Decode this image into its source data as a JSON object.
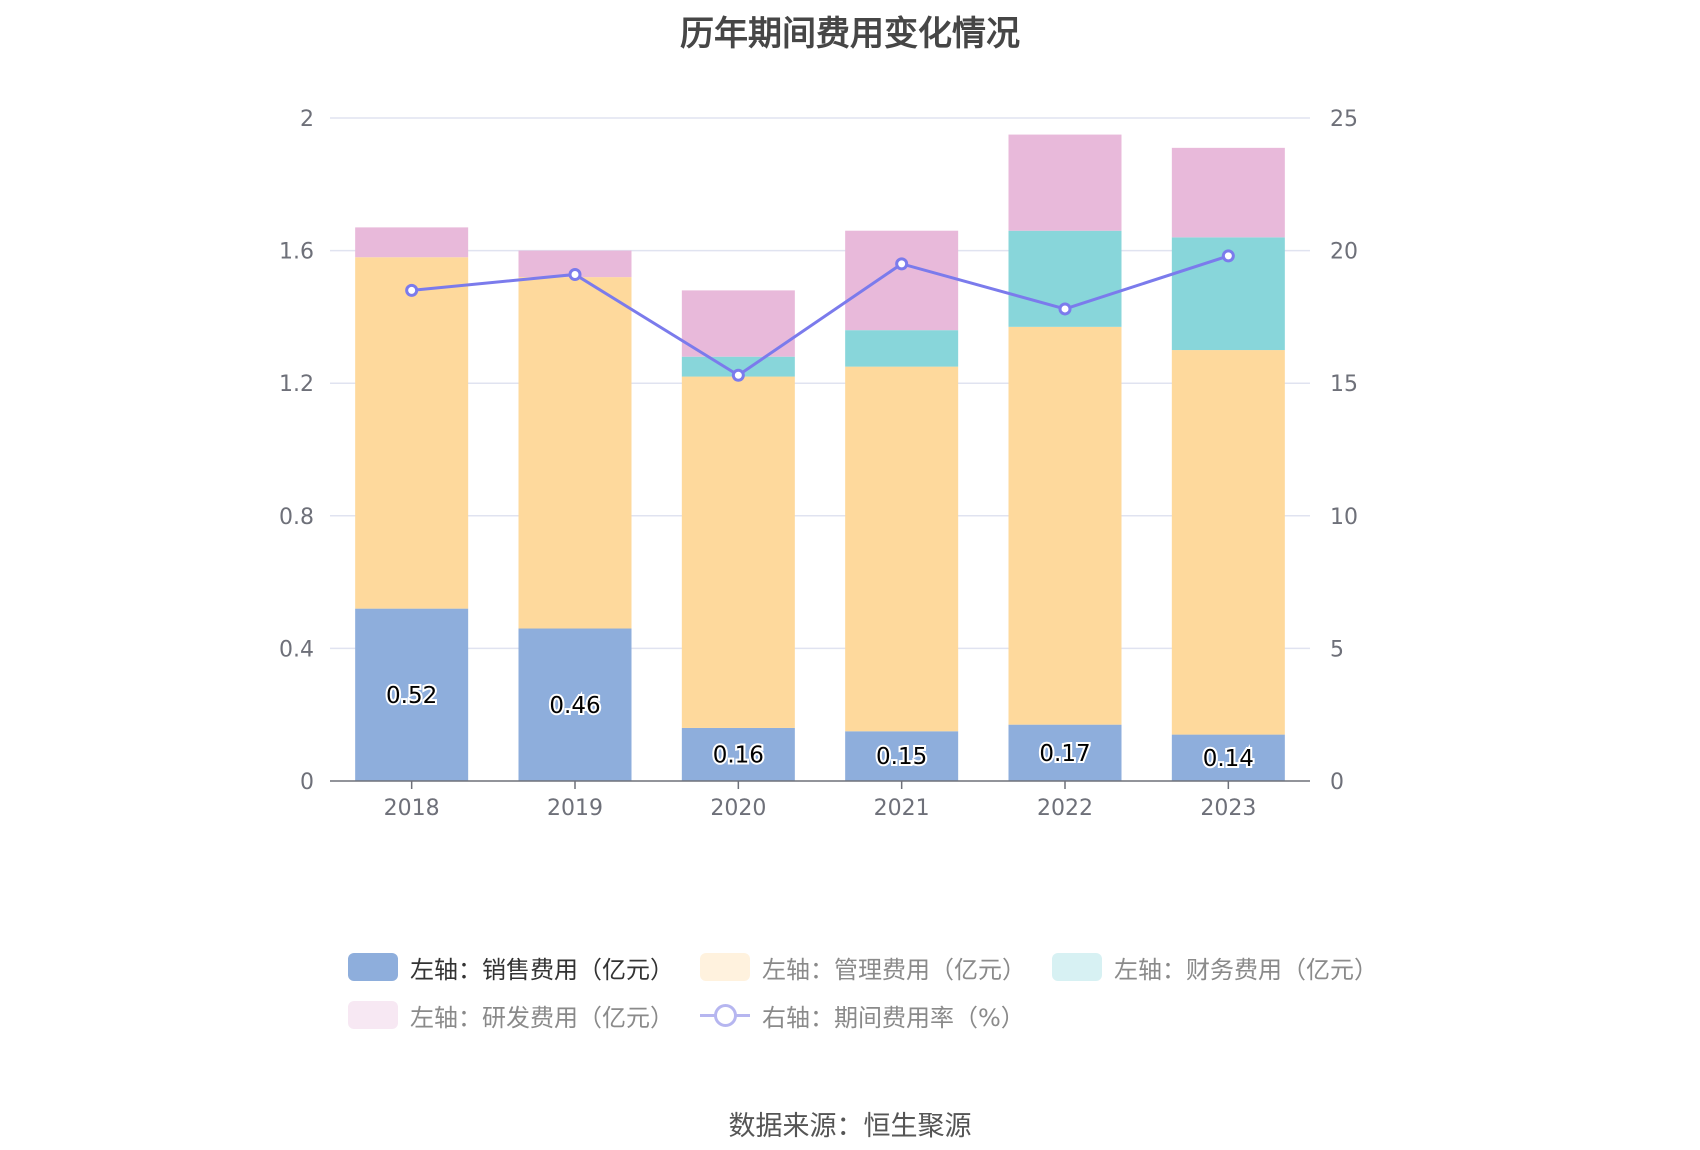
{
  "chart_data": {
    "type": "bar",
    "stacked": true,
    "title": "历年期间费用变化情况",
    "categories": [
      "2018",
      "2019",
      "2020",
      "2021",
      "2022",
      "2023"
    ],
    "series": [
      {
        "name": "左轴：销售费用（亿元）",
        "axis": "left",
        "color": "#8eaedc",
        "values": [
          0.52,
          0.46,
          0.16,
          0.15,
          0.17,
          0.14
        ],
        "labels": [
          "0.52",
          "0.46",
          "0.16",
          "0.15",
          "0.17",
          "0.14"
        ]
      },
      {
        "name": "左轴：管理费用（亿元）",
        "axis": "left",
        "color": "#fed99c",
        "values": [
          1.06,
          1.06,
          1.06,
          1.1,
          1.2,
          1.16
        ]
      },
      {
        "name": "左轴：财务费用（亿元）",
        "axis": "left",
        "color": "#88d6da",
        "values": [
          0.0,
          0.0,
          0.06,
          0.11,
          0.29,
          0.34
        ]
      },
      {
        "name": "左轴：研发费用（亿元）",
        "axis": "left",
        "color": "#e8b9da",
        "values": [
          0.09,
          0.08,
          0.2,
          0.3,
          0.29,
          0.27
        ]
      },
      {
        "name": "右轴：期间费用率（%）",
        "axis": "right",
        "type": "line",
        "color": "#7b7bec",
        "values": [
          18.5,
          19.1,
          15.3,
          19.5,
          17.8,
          19.8
        ]
      }
    ],
    "y_left": {
      "range": [
        0,
        2
      ],
      "ticks": [
        "0",
        "0.4",
        "0.8",
        "1.2",
        "1.6",
        "2"
      ]
    },
    "y_right": {
      "range": [
        0,
        25
      ],
      "ticks": [
        "0",
        "5",
        "10",
        "15",
        "20",
        "25"
      ]
    },
    "grid": true,
    "legend_position": "bottom"
  },
  "source": "数据来源：恒生聚源"
}
